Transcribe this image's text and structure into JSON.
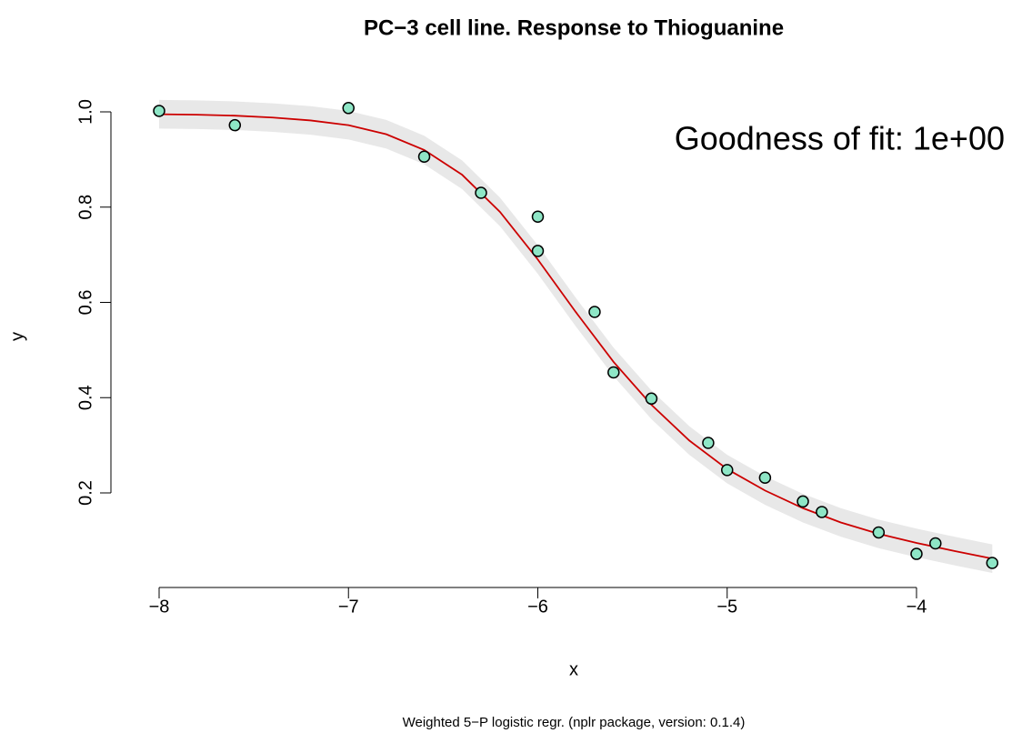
{
  "chart_data": {
    "type": "scatter",
    "title": "PC−3 cell line. Response to Thioguanine",
    "x_label": "x",
    "y_label": "y",
    "annotation": "Goodness of fit: 1e+00",
    "caption": "Weighted 5−P logistic regr. (nplr package, version: 0.1.4)",
    "xlim": [
      -8.2,
      -3.5
    ],
    "ylim": [
      0.03,
      1.04
    ],
    "xticks": [
      {
        "value": -8,
        "label": "−8"
      },
      {
        "value": -7,
        "label": "−7"
      },
      {
        "value": -6,
        "label": "−6"
      },
      {
        "value": -5,
        "label": "−5"
      },
      {
        "value": -4,
        "label": "−4"
      }
    ],
    "yticks": [
      0.2,
      0.4,
      0.6,
      0.8,
      {
        "value": 1,
        "label": "1.0"
      }
    ],
    "points": {
      "color": "#8ee6c6",
      "x": [
        -8,
        -7.6,
        -7,
        -6.6,
        -6.3,
        -6,
        -6,
        -5.7,
        -5.6,
        -5.4,
        -5.1,
        -5,
        -4.8,
        -4.6,
        -4.5,
        -4.2,
        -4,
        -3.9,
        -3.6
      ],
      "y": [
        1.002,
        0.972,
        1.008,
        0.906,
        0.83,
        0.708,
        0.78,
        0.58,
        0.453,
        0.398,
        0.305,
        0.248,
        0.232,
        0.182,
        0.16,
        0.117,
        0.072,
        0.094,
        0.053
      ]
    },
    "curve": {
      "color": "#cc0000",
      "band_color": "#e8e8e8",
      "x": [
        -8,
        -7.8,
        -7.6,
        -7.4,
        -7.2,
        -7,
        -6.8,
        -6.6,
        -6.4,
        -6.2,
        -6,
        -5.8,
        -5.6,
        -5.4,
        -5.2,
        -5,
        -4.8,
        -4.6,
        -4.4,
        -4.2,
        -4,
        -3.8,
        -3.6
      ],
      "y": [
        0.995,
        0.994,
        0.992,
        0.988,
        0.982,
        0.972,
        0.953,
        0.92,
        0.868,
        0.79,
        0.69,
        0.58,
        0.475,
        0.385,
        0.31,
        0.25,
        0.205,
        0.168,
        0.138,
        0.114,
        0.095,
        0.078,
        0.062
      ],
      "lower": [
        0.965,
        0.964,
        0.962,
        0.958,
        0.952,
        0.942,
        0.923,
        0.89,
        0.838,
        0.76,
        0.66,
        0.55,
        0.445,
        0.355,
        0.28,
        0.22,
        0.175,
        0.138,
        0.108,
        0.084,
        0.065,
        0.048,
        0.032
      ],
      "upper": [
        1.025,
        1.024,
        1.022,
        1.018,
        1.012,
        1.002,
        0.983,
        0.95,
        0.898,
        0.82,
        0.72,
        0.61,
        0.505,
        0.415,
        0.34,
        0.28,
        0.235,
        0.198,
        0.168,
        0.144,
        0.125,
        0.108,
        0.092
      ]
    }
  }
}
